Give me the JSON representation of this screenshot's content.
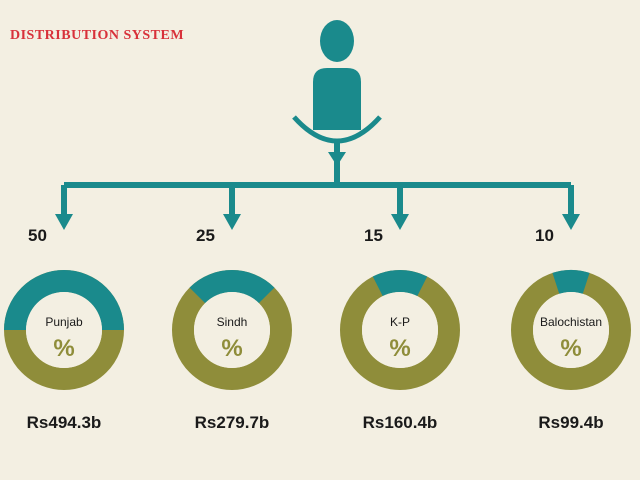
{
  "title": "DISTRIBUTION SYSTEM",
  "percent_symbol": "%",
  "colors": {
    "background": "#f3efe2",
    "teal": "#1a8a8c",
    "olive": "#8f8d3a",
    "title": "#d8313a"
  },
  "chart_data": {
    "type": "pie",
    "categories": [
      "Punjab",
      "Sindh",
      "K-P",
      "Balochistan"
    ],
    "values": [
      50,
      25,
      15,
      10
    ],
    "amounts": [
      "Rs494.3b",
      "Rs279.7b",
      "Rs160.4b",
      "Rs99.4b"
    ],
    "unit": "%"
  }
}
